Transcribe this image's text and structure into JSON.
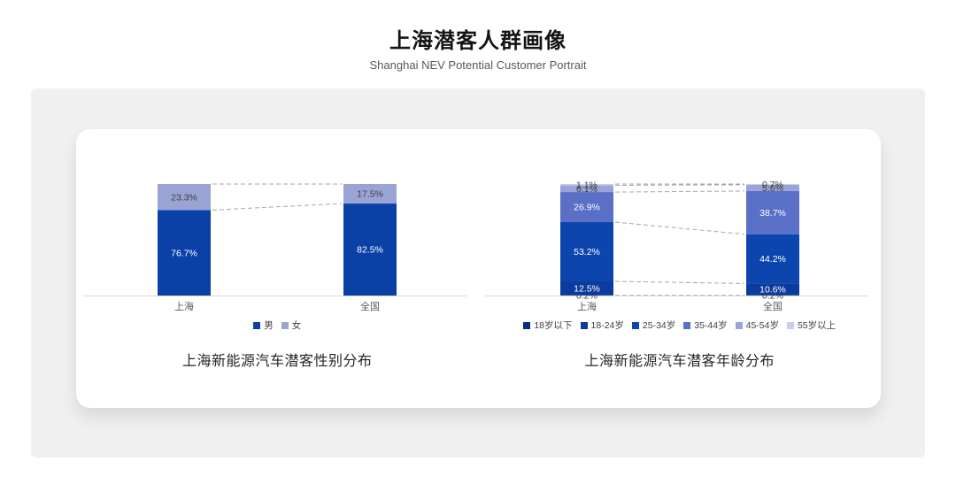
{
  "page": {
    "title": "上海潜客人群画像",
    "subtitle": "Shanghai NEV Potential Customer Portrait"
  },
  "chart_data": [
    {
      "type": "bar",
      "stacked": true,
      "title": "上海新能源汽车潜客性别分布",
      "categories": [
        "上海",
        "全国"
      ],
      "series": [
        {
          "name": "男",
          "values": [
            76.7,
            82.5
          ],
          "color": "#0B41A6",
          "label_color": "#FFFFFF"
        },
        {
          "name": "女",
          "values": [
            23.3,
            17.5
          ],
          "color": "#99A4D4",
          "label_color": "#404040"
        }
      ],
      "unit": "%",
      "ylim": [
        0,
        100
      ],
      "grid": false,
      "legend_position": "bottom",
      "connectors": "dashed",
      "axis_label_color": "#595959",
      "axis_line_color": "#D9D9D9",
      "connector_color": "#A6A6A6"
    },
    {
      "type": "bar",
      "stacked": true,
      "title": "上海新能源汽车潜客年龄分布",
      "categories": [
        "上海",
        "全国"
      ],
      "series": [
        {
          "name": "18岁以下",
          "values": [
            0.2,
            0.2
          ],
          "color": "#0A2E7E",
          "label_color": "#404040"
        },
        {
          "name": "18-24岁",
          "values": [
            12.5,
            10.6
          ],
          "color": "#0B3B9C",
          "label_color": "#FFFFFF"
        },
        {
          "name": "25-34岁",
          "values": [
            53.2,
            44.2
          ],
          "color": "#0D45AE",
          "label_color": "#FFFFFF"
        },
        {
          "name": "35-44岁",
          "values": [
            26.9,
            38.7
          ],
          "color": "#5A6FC6",
          "label_color": "#FFFFFF"
        },
        {
          "name": "45-54岁",
          "values": [
            6.1,
            5.6
          ],
          "color": "#99A5D8",
          "label_color": "#404040"
        },
        {
          "name": "55岁以上",
          "values": [
            1.1,
            0.7
          ],
          "color": "#C8CEE9",
          "label_color": "#404040"
        }
      ],
      "unit": "%",
      "ylim": [
        0,
        100
      ],
      "grid": false,
      "legend_position": "bottom",
      "connectors": "dashed",
      "axis_label_color": "#595959",
      "axis_line_color": "#D9D9D9",
      "connector_color": "#A6A6A6"
    }
  ]
}
